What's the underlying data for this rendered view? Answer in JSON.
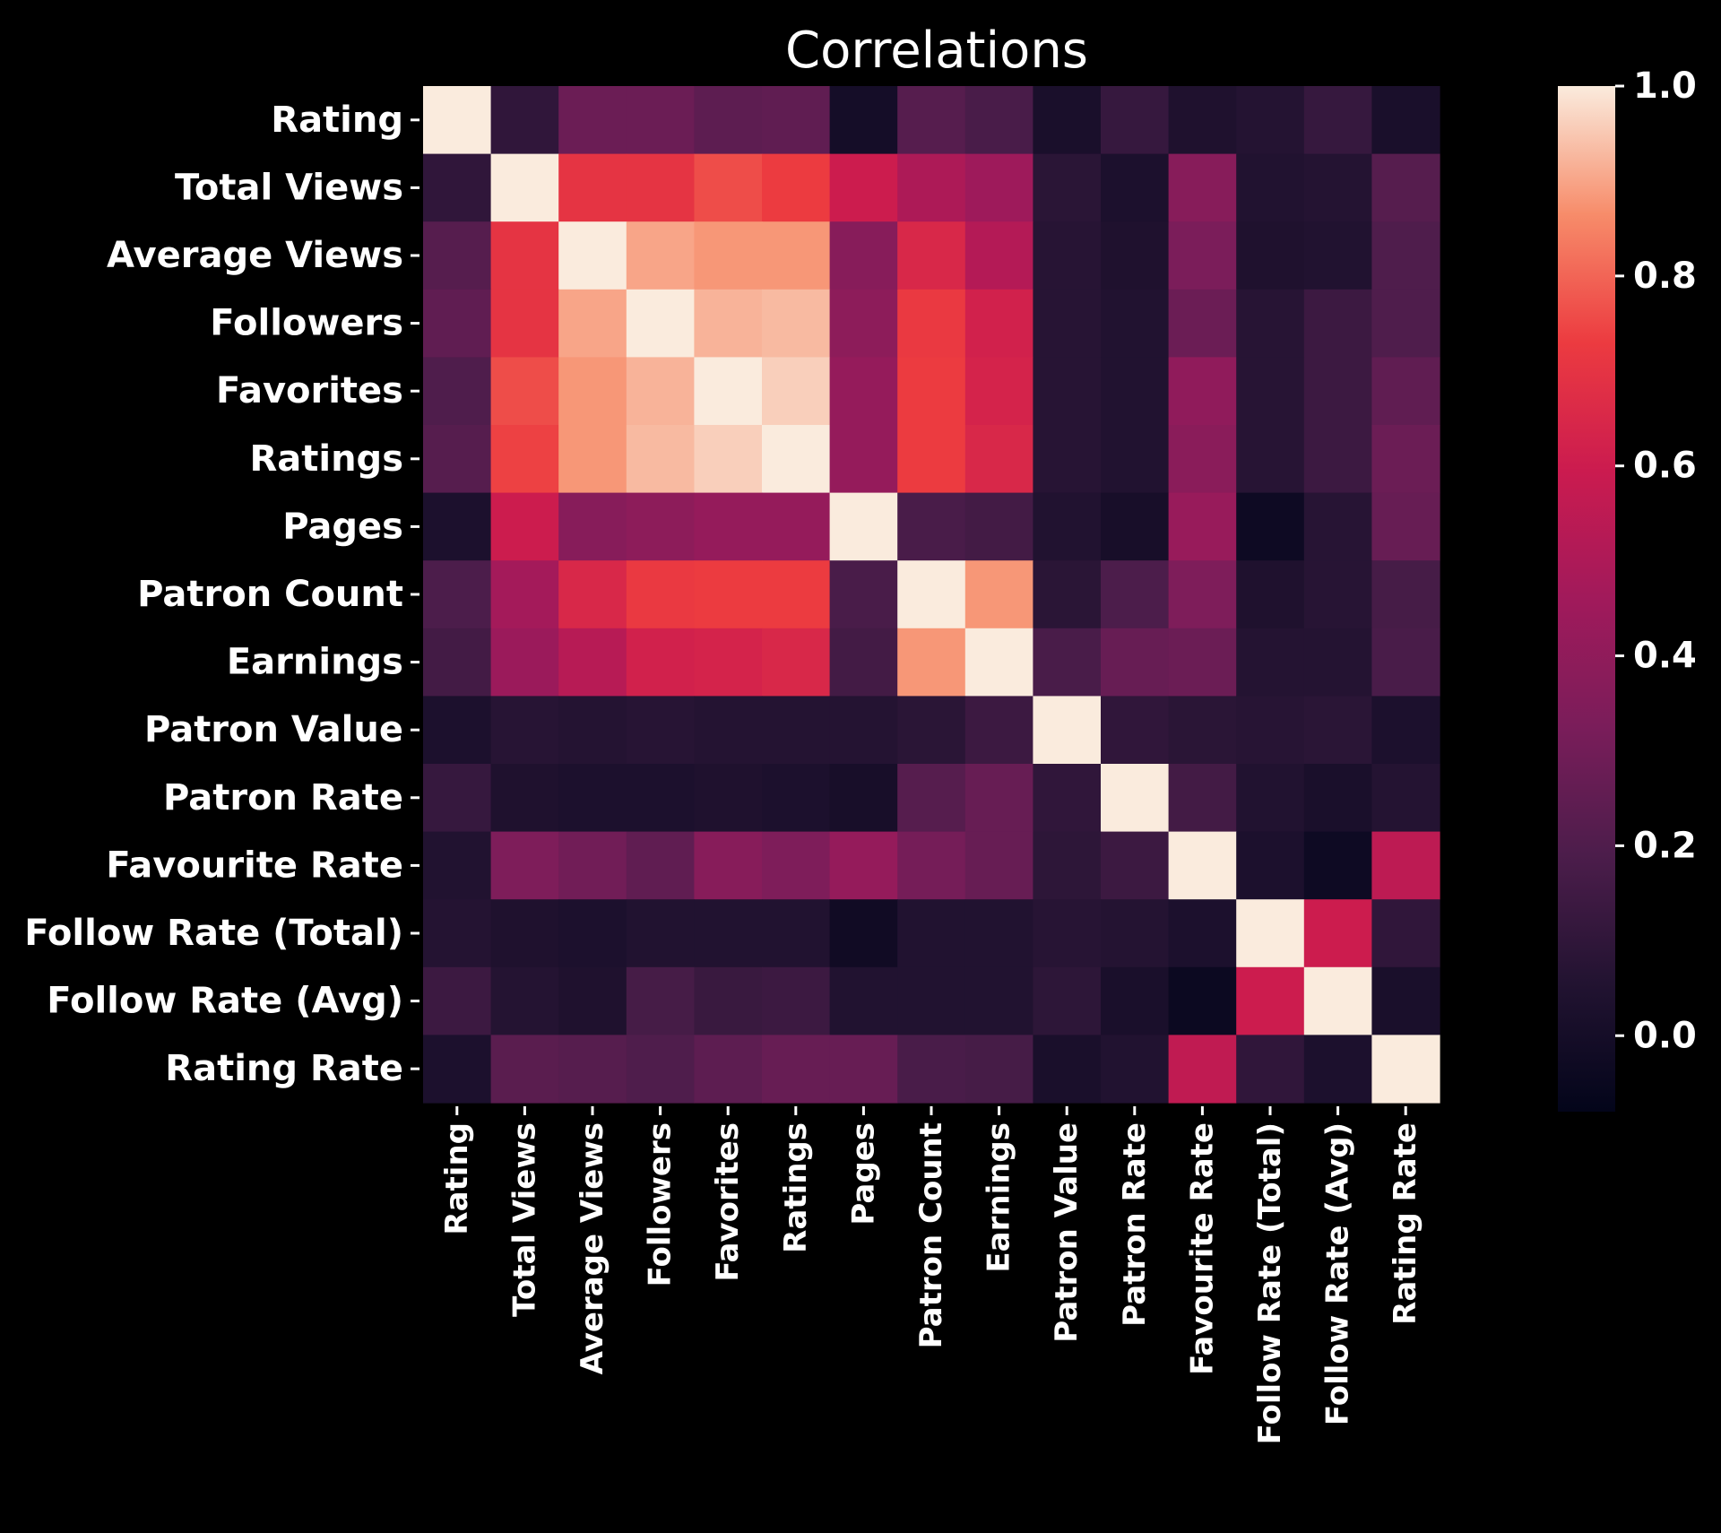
{
  "chart_data": {
    "type": "heatmap",
    "title": "Correlations",
    "row_labels": [
      "Rating",
      "Total Views",
      "Average Views",
      "Followers",
      "Favorites",
      "Ratings",
      "Pages",
      "Patron Count",
      "Earnings",
      "Patron Value",
      "Patron Rate",
      "Favourite Rate",
      "Follow Rate (Total)",
      "Follow Rate (Avg)",
      "Rating Rate"
    ],
    "col_labels": [
      "Rating",
      "Total Views",
      "Average Views",
      "Followers",
      "Favorites",
      "Ratings",
      "Pages",
      "Patron Count",
      "Earnings",
      "Patron Value",
      "Patron Rate",
      "Favourite Rate",
      "Follow Rate (Total)",
      "Follow Rate (Avg)",
      "Rating Rate"
    ],
    "values": [
      [
        1.0,
        0.1,
        0.28,
        0.28,
        0.24,
        0.25,
        0.0,
        0.22,
        0.18,
        0.02,
        0.12,
        0.04,
        0.06,
        0.12,
        0.02
      ],
      [
        0.1,
        1.0,
        0.7,
        0.7,
        0.76,
        0.73,
        0.6,
        0.5,
        0.45,
        0.08,
        0.03,
        0.37,
        0.05,
        0.06,
        0.22
      ],
      [
        0.22,
        0.7,
        1.0,
        0.9,
        0.88,
        0.88,
        0.37,
        0.65,
        0.52,
        0.07,
        0.04,
        0.33,
        0.04,
        0.05,
        0.2
      ],
      [
        0.25,
        0.7,
        0.9,
        1.0,
        0.92,
        0.93,
        0.39,
        0.72,
        0.62,
        0.07,
        0.05,
        0.28,
        0.07,
        0.14,
        0.2
      ],
      [
        0.2,
        0.76,
        0.88,
        0.92,
        1.0,
        0.96,
        0.42,
        0.73,
        0.63,
        0.07,
        0.05,
        0.4,
        0.07,
        0.14,
        0.25
      ],
      [
        0.22,
        0.74,
        0.88,
        0.93,
        0.96,
        1.0,
        0.42,
        0.73,
        0.65,
        0.07,
        0.05,
        0.38,
        0.07,
        0.14,
        0.28
      ],
      [
        0.03,
        0.6,
        0.37,
        0.39,
        0.42,
        0.42,
        1.0,
        0.18,
        0.16,
        0.05,
        0.01,
        0.43,
        -0.03,
        0.07,
        0.27
      ],
      [
        0.19,
        0.47,
        0.65,
        0.72,
        0.73,
        0.73,
        0.18,
        1.0,
        0.88,
        0.08,
        0.19,
        0.34,
        0.04,
        0.07,
        0.17
      ],
      [
        0.16,
        0.44,
        0.53,
        0.62,
        0.63,
        0.65,
        0.16,
        0.88,
        1.0,
        0.18,
        0.27,
        0.28,
        0.06,
        0.06,
        0.18
      ],
      [
        0.03,
        0.07,
        0.06,
        0.07,
        0.06,
        0.06,
        0.06,
        0.08,
        0.14,
        1.0,
        0.1,
        0.08,
        0.07,
        0.08,
        0.03
      ],
      [
        0.12,
        0.04,
        0.03,
        0.03,
        0.04,
        0.03,
        0.01,
        0.22,
        0.27,
        0.1,
        1.0,
        0.16,
        0.05,
        0.02,
        0.06
      ],
      [
        0.05,
        0.34,
        0.3,
        0.25,
        0.37,
        0.34,
        0.42,
        0.31,
        0.27,
        0.09,
        0.14,
        1.0,
        0.03,
        -0.03,
        0.55
      ],
      [
        0.06,
        0.04,
        0.03,
        0.05,
        0.05,
        0.05,
        -0.02,
        0.05,
        0.05,
        0.07,
        0.06,
        0.03,
        1.0,
        0.6,
        0.1
      ],
      [
        0.14,
        0.06,
        0.04,
        0.17,
        0.13,
        0.14,
        0.05,
        0.05,
        0.05,
        0.09,
        0.02,
        -0.04,
        0.6,
        1.0,
        0.02
      ],
      [
        0.03,
        0.23,
        0.22,
        0.2,
        0.24,
        0.27,
        0.27,
        0.18,
        0.17,
        0.02,
        0.05,
        0.56,
        0.1,
        0.03,
        1.0
      ]
    ],
    "colorbar": {
      "colormap": "rocket",
      "vmin": -0.08,
      "vmax": 1.0,
      "ticks": [
        0.0,
        0.2,
        0.4,
        0.6,
        0.8,
        1.0
      ],
      "tick_labels": [
        "0.0",
        "0.2",
        "0.4",
        "0.6",
        "0.8",
        "1.0"
      ]
    }
  }
}
